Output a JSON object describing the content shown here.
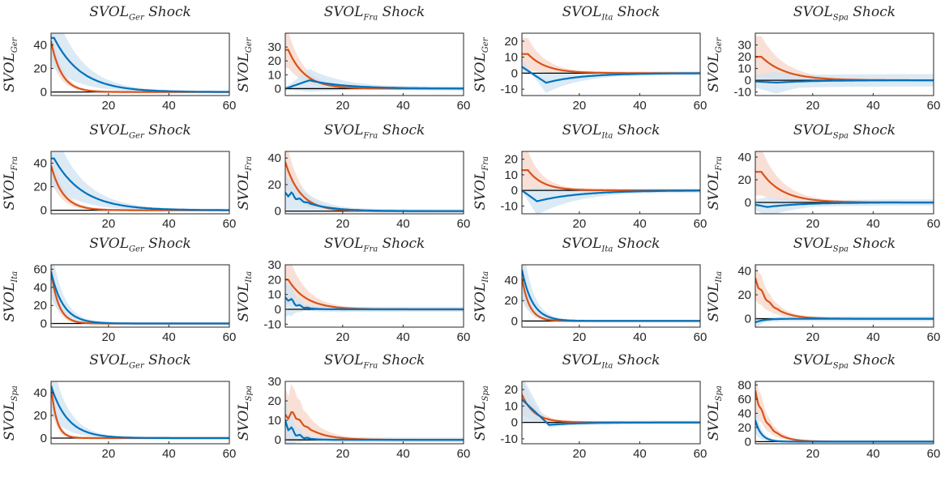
{
  "colors": {
    "orange": "#d95319",
    "orange_band": "#f7d5c8",
    "blue": "#0072bd",
    "blue_band": "#cfe3f2",
    "axis": "#262626",
    "zero_line": "#000000"
  },
  "chart_data": [
    {
      "type": "line",
      "row": 0,
      "col": 0,
      "title": {
        "sym": "SVOL",
        "sub": "Ger",
        "rest": "Shock"
      },
      "ylabel": {
        "sym": "SVOL",
        "sub": "Ger"
      },
      "xlim": [
        1,
        60
      ],
      "ylim": [
        -3,
        50
      ],
      "xticks": [
        20,
        40,
        60
      ],
      "yticks": [
        0,
        20,
        40
      ],
      "series": [
        {
          "color": "orange",
          "band": "orange_band",
          "y0": 43,
          "tau": 3.5,
          "peak_at": 1,
          "hw_scale": 0.3
        },
        {
          "color": "blue",
          "band": "blue_band",
          "y0": 46,
          "tau": 9,
          "peak_at": 2,
          "hw_scale": 0.55
        }
      ]
    },
    {
      "type": "line",
      "row": 0,
      "col": 1,
      "title": {
        "sym": "SVOL",
        "sub": "Fra",
        "rest": "Shock"
      },
      "ylabel": {
        "sym": "SVOL",
        "sub": "Ger"
      },
      "xlim": [
        1,
        60
      ],
      "ylim": [
        -5,
        40
      ],
      "xticks": [
        20,
        40,
        60
      ],
      "yticks": [
        0,
        10,
        20,
        30
      ],
      "series": [
        {
          "color": "orange",
          "band": "orange_band",
          "y0": 28,
          "tau": 5.5,
          "peak_at": 2,
          "hw_scale": 0.45
        },
        {
          "color": "blue",
          "band": "blue_band",
          "y0": 0,
          "peak": 6,
          "peak_at": 9,
          "tau": 12,
          "hw_scale": 1.3
        }
      ]
    },
    {
      "type": "line",
      "row": 0,
      "col": 2,
      "title": {
        "sym": "SVOL",
        "sub": "Ita",
        "rest": "Shock"
      },
      "ylabel": {
        "sym": "SVOL",
        "sub": "Ger"
      },
      "xlim": [
        1,
        60
      ],
      "ylim": [
        -14,
        25
      ],
      "xticks": [
        20,
        40,
        60
      ],
      "yticks": [
        -10,
        0,
        10,
        20
      ],
      "series": [
        {
          "color": "orange",
          "band": "orange_band",
          "y0": 12,
          "tau": 6,
          "peak_at": 3,
          "hw_scale": 0.8
        },
        {
          "color": "blue",
          "band": "blue_band",
          "y0": 4,
          "peak": -6,
          "peak_at": 9,
          "tau": 12,
          "hw_scale": 1.0
        }
      ]
    },
    {
      "type": "line",
      "row": 0,
      "col": 3,
      "title": {
        "sym": "SVOL",
        "sub": "Spa",
        "rest": "Shock"
      },
      "ylabel": {
        "sym": "SVOL",
        "sub": "Ger"
      },
      "xlim": [
        1,
        60
      ],
      "ylim": [
        -13,
        40
      ],
      "xticks": [
        20,
        40,
        60
      ],
      "yticks": [
        -10,
        0,
        10,
        20,
        30
      ],
      "series": [
        {
          "color": "orange",
          "band": "orange_band",
          "y0": 20,
          "tau": 8,
          "peak_at": 3,
          "hw_scale": 0.85
        },
        {
          "color": "blue",
          "band": "blue_band",
          "y0": -1,
          "peak": -2,
          "peak_at": 8,
          "tau": 12,
          "hw_scale": 4.5
        }
      ]
    },
    {
      "type": "line",
      "row": 1,
      "col": 0,
      "title": {
        "sym": "SVOL",
        "sub": "Ger",
        "rest": "Shock"
      },
      "ylabel": {
        "sym": "SVOL",
        "sub": "Fra"
      },
      "xlim": [
        1,
        60
      ],
      "ylim": [
        -3,
        50
      ],
      "xticks": [
        20,
        40,
        60
      ],
      "yticks": [
        0,
        20,
        40
      ],
      "series": [
        {
          "color": "orange",
          "band": "orange_band",
          "y0": 38,
          "tau": 4,
          "peak_at": 1,
          "hw_scale": 0.35
        },
        {
          "color": "blue",
          "band": "blue_band",
          "y0": 44,
          "tau": 9.5,
          "peak_at": 2,
          "hw_scale": 0.55
        }
      ]
    },
    {
      "type": "line",
      "row": 1,
      "col": 1,
      "title": {
        "sym": "SVOL",
        "sub": "Fra",
        "rest": "Shock"
      },
      "ylabel": {
        "sym": "SVOL",
        "sub": "Fra"
      },
      "xlim": [
        1,
        60
      ],
      "ylim": [
        -2,
        45
      ],
      "xticks": [
        20,
        40,
        60
      ],
      "yticks": [
        0,
        20,
        40
      ],
      "series": [
        {
          "color": "orange",
          "band": "orange_band",
          "y0": 37,
          "tau": 5,
          "peak_at": 1,
          "hw_scale": 0.5
        },
        {
          "color": "blue",
          "band": "blue_band",
          "y0": 14,
          "tau": 8,
          "peak_at": 2,
          "hw_scale": 1.0,
          "wiggle": 4
        }
      ]
    },
    {
      "type": "line",
      "row": 1,
      "col": 2,
      "title": {
        "sym": "SVOL",
        "sub": "Ita",
        "rest": "Shock"
      },
      "ylabel": {
        "sym": "SVOL",
        "sub": "Fra"
      },
      "xlim": [
        1,
        60
      ],
      "ylim": [
        -15,
        25
      ],
      "xticks": [
        20,
        40,
        60
      ],
      "yticks": [
        -10,
        0,
        10,
        20
      ],
      "series": [
        {
          "color": "orange",
          "band": "orange_band",
          "y0": 13,
          "tau": 5,
          "peak_at": 3,
          "hw_scale": 0.9
        },
        {
          "color": "blue",
          "band": "blue_band",
          "y0": 0,
          "peak": -7,
          "peak_at": 6,
          "tau": 14,
          "hw_scale": 1.2
        }
      ]
    },
    {
      "type": "line",
      "row": 1,
      "col": 3,
      "title": {
        "sym": "SVOL",
        "sub": "Spa",
        "rest": "Shock"
      },
      "ylabel": {
        "sym": "SVOL",
        "sub": "Fra"
      },
      "xlim": [
        1,
        60
      ],
      "ylim": [
        -10,
        45
      ],
      "xticks": [
        20,
        40,
        60
      ],
      "yticks": [
        0,
        20,
        40
      ],
      "series": [
        {
          "color": "orange",
          "band": "orange_band",
          "y0": 27,
          "tau": 7,
          "peak_at": 3,
          "hw_scale": 0.75
        },
        {
          "color": "blue",
          "band": "blue_band",
          "y0": -2,
          "peak": -4,
          "peak_at": 5,
          "tau": 12,
          "hw_scale": 2.0
        }
      ]
    },
    {
      "type": "line",
      "row": 2,
      "col": 0,
      "title": {
        "sym": "SVOL",
        "sub": "Ger",
        "rest": "Shock"
      },
      "ylabel": {
        "sym": "SVOL",
        "sub": "Ita"
      },
      "xlim": [
        1,
        60
      ],
      "ylim": [
        -4,
        65
      ],
      "xticks": [
        20,
        40,
        60
      ],
      "yticks": [
        0,
        20,
        40,
        60
      ],
      "series": [
        {
          "color": "orange",
          "band": "orange_band",
          "y0": 58,
          "tau": 2.5,
          "peak_at": 1,
          "hw_scale": 0.35
        },
        {
          "color": "blue",
          "band": "blue_band",
          "y0": 57,
          "tau": 4,
          "peak_at": 1,
          "hw_scale": 0.5
        }
      ]
    },
    {
      "type": "line",
      "row": 2,
      "col": 1,
      "title": {
        "sym": "SVOL",
        "sub": "Fra",
        "rest": "Shock"
      },
      "ylabel": {
        "sym": "SVOL",
        "sub": "Ita"
      },
      "xlim": [
        1,
        60
      ],
      "ylim": [
        -12,
        30
      ],
      "xticks": [
        20,
        40,
        60
      ],
      "yticks": [
        -10,
        0,
        10,
        20,
        30
      ],
      "series": [
        {
          "color": "orange",
          "band": "orange_band",
          "y0": 20,
          "tau": 6,
          "peak_at": 2,
          "hw_scale": 0.8
        },
        {
          "color": "blue",
          "band": "blue_band",
          "y0": 8,
          "tau": 3,
          "peak_at": 2,
          "hw_scale": 1.6,
          "wiggle": 3
        }
      ]
    },
    {
      "type": "line",
      "row": 2,
      "col": 2,
      "title": {
        "sym": "SVOL",
        "sub": "Ita",
        "rest": "Shock"
      },
      "ylabel": {
        "sym": "SVOL",
        "sub": "Ita"
      },
      "xlim": [
        1,
        60
      ],
      "ylim": [
        -6,
        55
      ],
      "xticks": [
        20,
        40,
        60
      ],
      "yticks": [
        0,
        20,
        40
      ],
      "series": [
        {
          "color": "orange",
          "band": "orange_band",
          "y0": 42,
          "tau": 2.5,
          "peak_at": 1,
          "hw_scale": 0.4
        },
        {
          "color": "blue",
          "band": "blue_band",
          "y0": 50,
          "tau": 3.5,
          "peak_at": 1,
          "hw_scale": 0.6
        }
      ]
    },
    {
      "type": "line",
      "row": 2,
      "col": 3,
      "title": {
        "sym": "SVOL",
        "sub": "Spa",
        "rest": "Shock"
      },
      "ylabel": {
        "sym": "SVOL",
        "sub": "Ita"
      },
      "xlim": [
        1,
        60
      ],
      "ylim": [
        -7,
        45
      ],
      "xticks": [
        20,
        40,
        60
      ],
      "yticks": [
        0,
        20,
        40
      ],
      "series": [
        {
          "color": "orange",
          "band": "orange_band",
          "y0": 34,
          "tau": 5,
          "peak_at": 1,
          "hw_scale": 0.5,
          "wiggle": 3
        },
        {
          "color": "blue",
          "band": "blue_band",
          "y0": -3,
          "tau": 3,
          "peak_at": 1,
          "hw_scale": 1.5
        }
      ]
    },
    {
      "type": "line",
      "row": 3,
      "col": 0,
      "title": {
        "sym": "SVOL",
        "sub": "Ger",
        "rest": "Shock"
      },
      "ylabel": {
        "sym": "SVOL",
        "sub": "Spa"
      },
      "xlim": [
        1,
        60
      ],
      "ylim": [
        -5,
        50
      ],
      "xticks": [
        20,
        40,
        60
      ],
      "yticks": [
        0,
        20,
        40
      ],
      "series": [
        {
          "color": "orange",
          "band": "orange_band",
          "y0": 46,
          "tau": 1.8,
          "peak_at": 1,
          "hw_scale": 0.35
        },
        {
          "color": "blue",
          "band": "blue_band",
          "y0": 46,
          "tau": 5.5,
          "peak_at": 1,
          "hw_scale": 0.55
        }
      ]
    },
    {
      "type": "line",
      "row": 3,
      "col": 1,
      "title": {
        "sym": "SVOL",
        "sub": "Fra",
        "rest": "Shock"
      },
      "ylabel": {
        "sym": "SVOL",
        "sub": "Spa"
      },
      "xlim": [
        1,
        60
      ],
      "ylim": [
        -2,
        30
      ],
      "xticks": [
        20,
        40,
        60
      ],
      "yticks": [
        0,
        10,
        20,
        30
      ],
      "series": [
        {
          "color": "orange",
          "band": "orange_band",
          "y0": 13,
          "tau": 6,
          "peak_at": 4,
          "hw_scale": 1.0,
          "wiggle": 3
        },
        {
          "color": "blue",
          "band": "blue_band",
          "y0": 10,
          "tau": 3,
          "peak_at": 1,
          "hw_scale": 1.4,
          "wiggle": 3
        }
      ]
    },
    {
      "type": "line",
      "row": 3,
      "col": 2,
      "title": {
        "sym": "SVOL",
        "sub": "Ita",
        "rest": "Shock"
      },
      "ylabel": {
        "sym": "SVOL",
        "sub": "Spa"
      },
      "xlim": [
        1,
        60
      ],
      "ylim": [
        -13,
        25
      ],
      "xticks": [
        20,
        40,
        60
      ],
      "yticks": [
        -10,
        0,
        10,
        20
      ],
      "series": [
        {
          "color": "orange",
          "band": "orange_band",
          "y0": 17,
          "tau": 4,
          "peak_at": 1,
          "hw_scale": 0.7
        },
        {
          "color": "blue",
          "band": "blue_band",
          "y0": 14,
          "peak": -1.5,
          "peak_at": 10,
          "tau": 10,
          "hw_scale": 1.0
        }
      ]
    },
    {
      "type": "line",
      "row": 3,
      "col": 3,
      "title": {
        "sym": "SVOL",
        "sub": "Spa",
        "rest": "Shock"
      },
      "ylabel": {
        "sym": "SVOL",
        "sub": "Spa"
      },
      "xlim": [
        1,
        60
      ],
      "ylim": [
        -3,
        85
      ],
      "xticks": [
        20,
        40,
        60
      ],
      "yticks": [
        0,
        20,
        40,
        60,
        80
      ],
      "series": [
        {
          "color": "orange",
          "band": "orange_band",
          "y0": 72,
          "tau": 4,
          "peak_at": 1,
          "hw_scale": 0.4,
          "wiggle": 5
        },
        {
          "color": "blue",
          "band": "blue_band",
          "y0": 30,
          "tau": 2,
          "peak_at": 1,
          "hw_scale": 0.6
        }
      ]
    }
  ]
}
